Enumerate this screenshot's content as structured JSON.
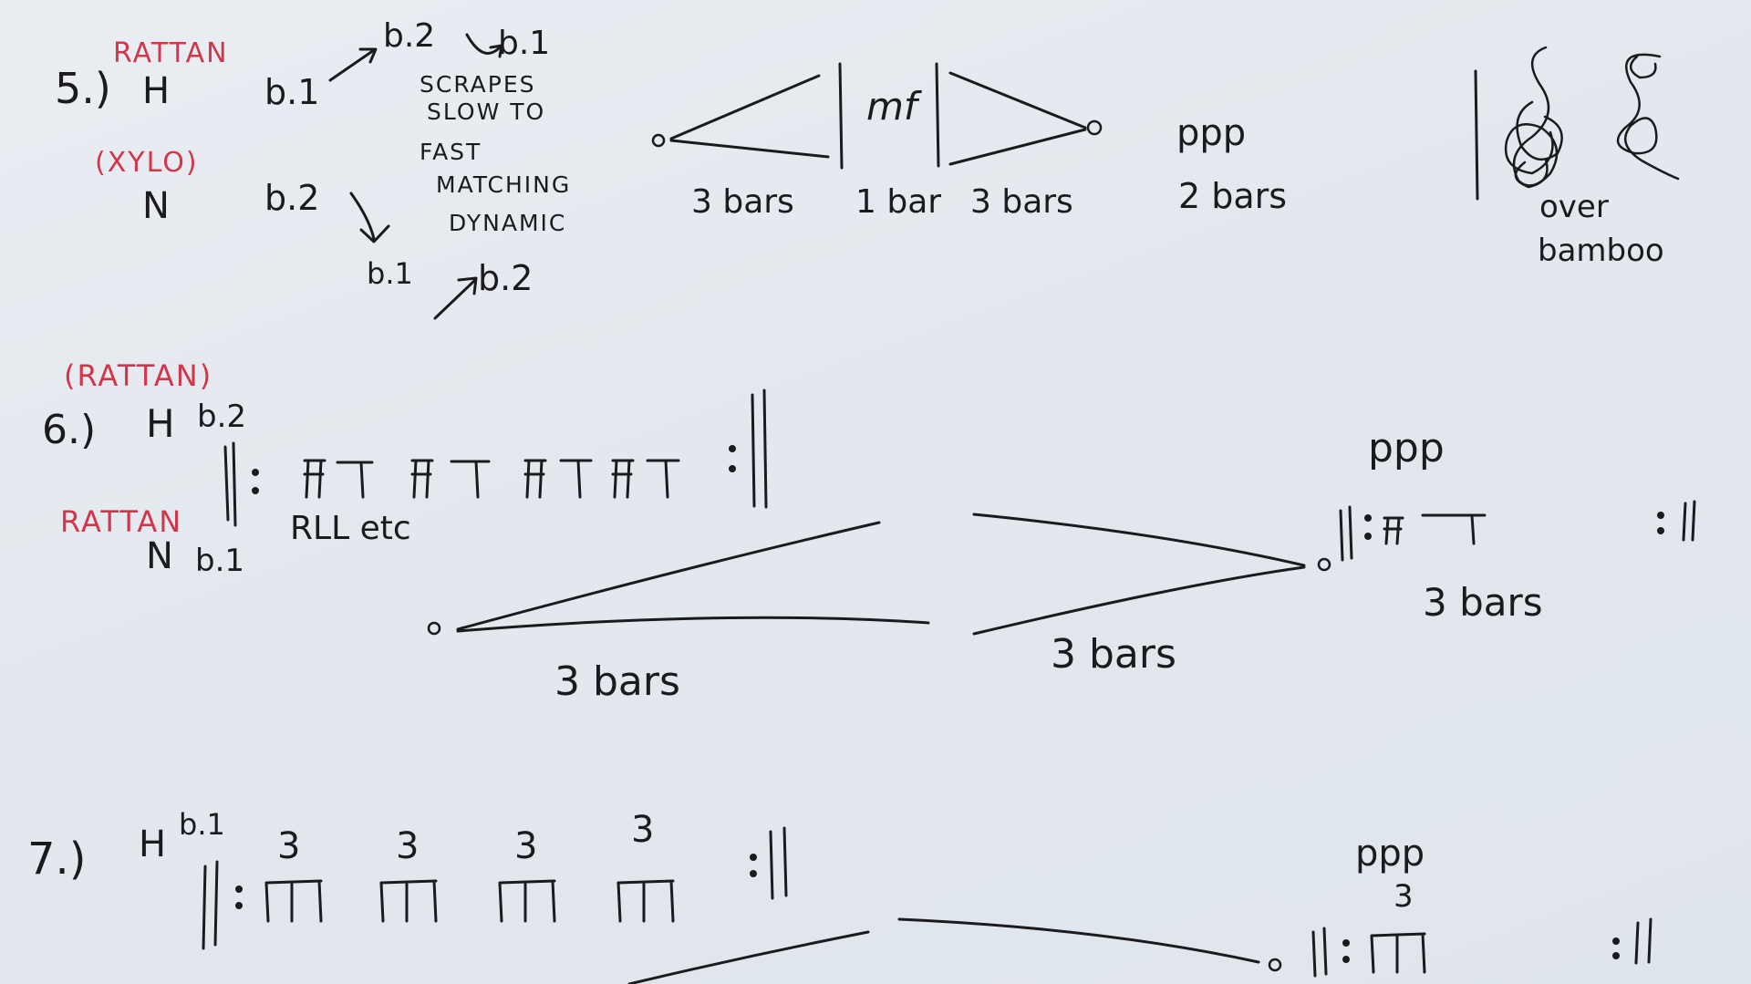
{
  "section5": {
    "number": "5.)",
    "h_label": "H",
    "h_instrument": "RATTAN",
    "n_label": "N",
    "n_instrument": "(XYLO)",
    "h_b1": "b.1",
    "h_b2": "b.2",
    "h_b1_again": "b.1",
    "instruction_line1": "SCRAPES",
    "instruction_line2": "SLOW TO",
    "instruction_line3": "FAST",
    "instruction_line4": "MATCHING",
    "instruction_line5": "DYNAMIC",
    "n_b2": "b.2",
    "n_b1": "b.1",
    "n_b2_again": "b.2",
    "crescendo_duration": "3 bars",
    "dynamic_mf": "mf",
    "mf_duration": "1 bar",
    "decrescendo_duration": "3 bars",
    "dynamic_ppp": "ppp",
    "ppp_duration": "2 bars",
    "swirl_note_line1": "over",
    "swirl_note_line2": "bamboo"
  },
  "section6": {
    "number": "6.)",
    "instrument_top": "(RATTAN)",
    "h_label": "H",
    "h_b2": "b.2",
    "instrument_bottom": "RATTAN",
    "n_label": "N",
    "n_b1": "b.1",
    "sticking": "RLL etc",
    "crescendo_duration": "3 bars",
    "decrescendo_duration": "3 bars",
    "dynamic_ppp": "ppp",
    "repeat_duration": "3 bars"
  },
  "section7": {
    "number": "7.)",
    "h_label": "H",
    "h_b1": "b.1",
    "tuplets": [
      "3",
      "3",
      "3",
      "3"
    ],
    "dynamic_ppp": "ppp",
    "final_tuplet": "3"
  }
}
